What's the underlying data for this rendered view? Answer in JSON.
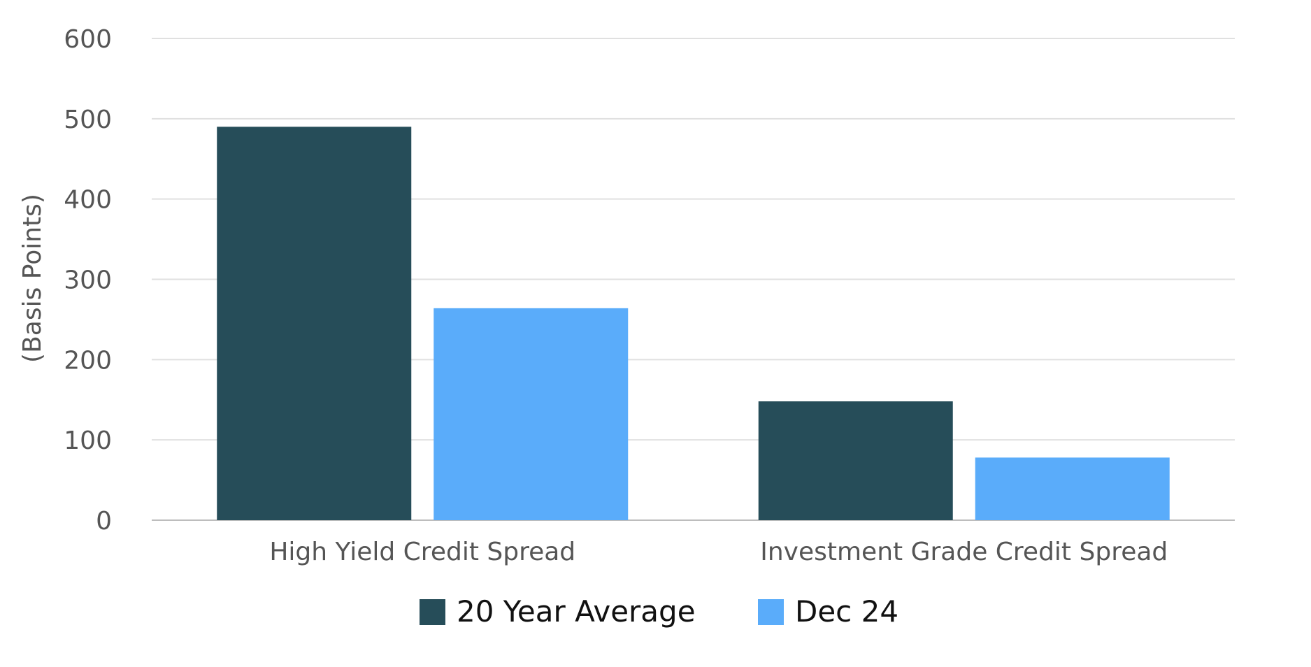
{
  "chart_data": {
    "type": "bar",
    "categories": [
      "High Yield Credit Spread",
      "Investment Grade Credit Spread"
    ],
    "series": [
      {
        "name": "20 Year Average",
        "values": [
          490,
          148
        ],
        "color": "#264d59"
      },
      {
        "name": "Dec 24",
        "values": [
          264,
          78
        ],
        "color": "#5aacfa"
      }
    ],
    "title": "",
    "xlabel": "",
    "ylabel": "(Basis Points)",
    "ylim": [
      0,
      600
    ],
    "yticks": [
      0,
      100,
      200,
      300,
      400,
      500,
      600
    ],
    "grid": true,
    "legend_position": "bottom"
  }
}
